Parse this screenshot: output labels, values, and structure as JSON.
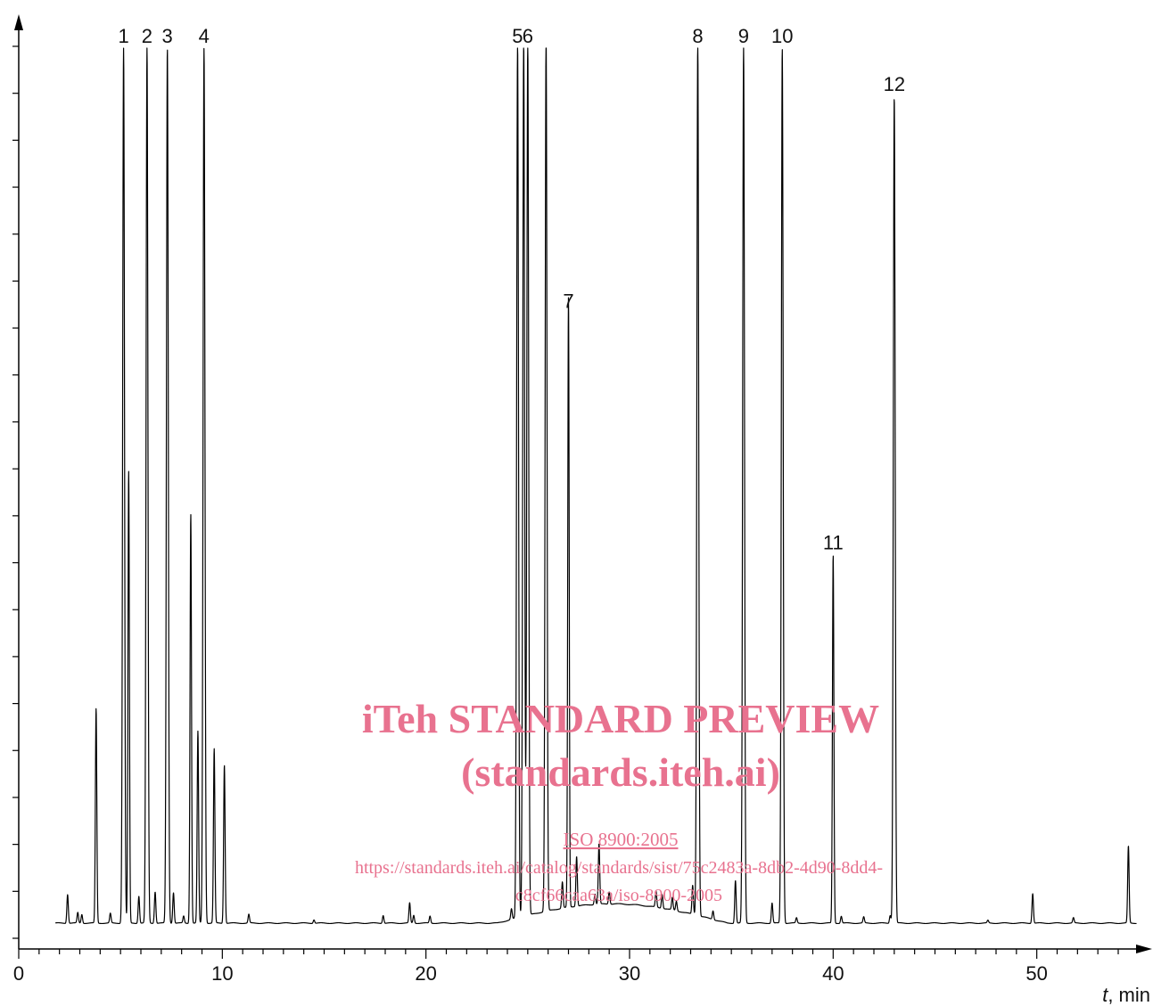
{
  "chart_data": {
    "type": "line",
    "title": "",
    "xlabel_italic": "t",
    "xlabel_rest": ", min",
    "ylabel": "",
    "xlim": [
      0,
      55
    ],
    "ylim": [
      0,
      100
    ],
    "x_ticks": [
      "0",
      "10",
      "20",
      "30",
      "40",
      "50"
    ],
    "y_minor_tick_count": 20,
    "grid": false,
    "peaks": [
      {
        "t": 3.8,
        "h": 24.5,
        "label": ""
      },
      {
        "t": 2.4,
        "h": 3.3,
        "label": ""
      },
      {
        "t": 2.9,
        "h": 1.2,
        "label": ""
      },
      {
        "t": 3.1,
        "h": 1.0,
        "label": ""
      },
      {
        "t": 4.5,
        "h": 1.1,
        "label": ""
      },
      {
        "t": 5.15,
        "h": 100,
        "label": "1"
      },
      {
        "t": 5.4,
        "h": 51.6,
        "label": ""
      },
      {
        "t": 5.9,
        "h": 3.1,
        "label": ""
      },
      {
        "t": 6.3,
        "h": 100,
        "label": "2"
      },
      {
        "t": 6.7,
        "h": 3.6,
        "label": ""
      },
      {
        "t": 7.3,
        "h": 100,
        "label": "3"
      },
      {
        "t": 7.6,
        "h": 3.5,
        "label": ""
      },
      {
        "t": 8.1,
        "h": 0.8,
        "label": ""
      },
      {
        "t": 8.45,
        "h": 46.8,
        "label": ""
      },
      {
        "t": 8.8,
        "h": 21.9,
        "label": ""
      },
      {
        "t": 9.1,
        "h": 100,
        "label": "4"
      },
      {
        "t": 9.6,
        "h": 19.9,
        "label": ""
      },
      {
        "t": 10.1,
        "h": 18.1,
        "label": ""
      },
      {
        "t": 11.3,
        "h": 1.0,
        "label": ""
      },
      {
        "t": 14.5,
        "h": 0.4,
        "label": ""
      },
      {
        "t": 17.9,
        "h": 0.9,
        "label": ""
      },
      {
        "t": 19.2,
        "h": 2.3,
        "label": ""
      },
      {
        "t": 19.4,
        "h": 0.9,
        "label": ""
      },
      {
        "t": 20.2,
        "h": 0.8,
        "label": ""
      },
      {
        "t": 24.2,
        "h": 1.2,
        "label": ""
      },
      {
        "t": 24.5,
        "h": 100,
        "label": "5"
      },
      {
        "t": 24.8,
        "h": 100,
        "label": ""
      },
      {
        "t": 25.0,
        "h": 100,
        "label": "6"
      },
      {
        "t": 25.9,
        "h": 100,
        "label": ""
      },
      {
        "t": 26.7,
        "h": 3.0,
        "label": ""
      },
      {
        "t": 27.0,
        "h": 69.7,
        "label": "7"
      },
      {
        "t": 27.4,
        "h": 5.7,
        "label": ""
      },
      {
        "t": 28.3,
        "h": 1.2,
        "label": ""
      },
      {
        "t": 28.5,
        "h": 6.9,
        "label": ""
      },
      {
        "t": 29.0,
        "h": 1.4,
        "label": ""
      },
      {
        "t": 31.3,
        "h": 1.8,
        "label": ""
      },
      {
        "t": 31.6,
        "h": 1.6,
        "label": ""
      },
      {
        "t": 32.1,
        "h": 1.4,
        "label": ""
      },
      {
        "t": 32.3,
        "h": 1.1,
        "label": ""
      },
      {
        "t": 33.1,
        "h": 3.3,
        "label": ""
      },
      {
        "t": 33.35,
        "h": 100,
        "label": "8"
      },
      {
        "t": 34.1,
        "h": 1.0,
        "label": ""
      },
      {
        "t": 35.2,
        "h": 4.9,
        "label": ""
      },
      {
        "t": 35.6,
        "h": 100,
        "label": "9"
      },
      {
        "t": 37.0,
        "h": 2.3,
        "label": ""
      },
      {
        "t": 37.5,
        "h": 100,
        "label": "10"
      },
      {
        "t": 38.2,
        "h": 0.6,
        "label": ""
      },
      {
        "t": 40.0,
        "h": 42.1,
        "label": "11"
      },
      {
        "t": 40.4,
        "h": 0.8,
        "label": ""
      },
      {
        "t": 41.5,
        "h": 0.7,
        "label": ""
      },
      {
        "t": 42.8,
        "h": 0.9,
        "label": ""
      },
      {
        "t": 43.0,
        "h": 94.5,
        "label": "12"
      },
      {
        "t": 47.6,
        "h": 0.3,
        "label": ""
      },
      {
        "t": 49.8,
        "h": 3.4,
        "label": ""
      },
      {
        "t": 51.8,
        "h": 0.6,
        "label": ""
      },
      {
        "t": 54.5,
        "h": 8.8,
        "label": ""
      }
    ]
  },
  "watermark": {
    "title": "iTeh STANDARD PREVIEW",
    "subtitle": "(standards.iteh.ai)",
    "doc_id": "ISO 8900:2005",
    "url_line1": "https://standards.iteh.ai/catalog/standards/sist/75c2483a-8db2-4d90-8dd4-",
    "url_line2": "c8cf66caa63a/iso-8900-2005",
    "color": "#e8728f"
  }
}
